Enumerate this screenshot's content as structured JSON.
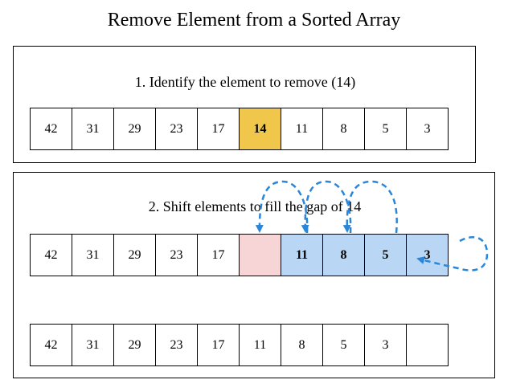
{
  "title": "Remove Element from a Sorted Array",
  "step1": {
    "label": "1. Identify the element to remove (14)",
    "cells": [
      {
        "value": "42",
        "state": "normal"
      },
      {
        "value": "31",
        "state": "normal"
      },
      {
        "value": "29",
        "state": "normal"
      },
      {
        "value": "23",
        "state": "normal"
      },
      {
        "value": "17",
        "state": "normal"
      },
      {
        "value": "14",
        "state": "target"
      },
      {
        "value": "11",
        "state": "normal"
      },
      {
        "value": "8",
        "state": "normal"
      },
      {
        "value": "5",
        "state": "normal"
      },
      {
        "value": "3",
        "state": "normal"
      }
    ]
  },
  "step2": {
    "label": "2. Shift elements to fill the gap of 14",
    "shift_row": [
      {
        "value": "42",
        "state": "normal"
      },
      {
        "value": "31",
        "state": "normal"
      },
      {
        "value": "29",
        "state": "normal"
      },
      {
        "value": "23",
        "state": "normal"
      },
      {
        "value": "17",
        "state": "normal"
      },
      {
        "value": "",
        "state": "gap"
      },
      {
        "value": "11",
        "state": "shifted"
      },
      {
        "value": "8",
        "state": "shifted"
      },
      {
        "value": "5",
        "state": "shifted"
      },
      {
        "value": "3",
        "state": "shifted"
      }
    ],
    "result_row": [
      {
        "value": "42",
        "state": "normal"
      },
      {
        "value": "31",
        "state": "normal"
      },
      {
        "value": "29",
        "state": "normal"
      },
      {
        "value": "23",
        "state": "normal"
      },
      {
        "value": "17",
        "state": "normal"
      },
      {
        "value": "11",
        "state": "normal"
      },
      {
        "value": "8",
        "state": "normal"
      },
      {
        "value": "5",
        "state": "normal"
      },
      {
        "value": "3",
        "state": "normal"
      },
      {
        "value": "",
        "state": "normal"
      }
    ]
  },
  "colors": {
    "target": "#f0c74a",
    "gap": "#f7d4d6",
    "shifted": "#b9d7f5",
    "arrow": "#2a86d8"
  }
}
